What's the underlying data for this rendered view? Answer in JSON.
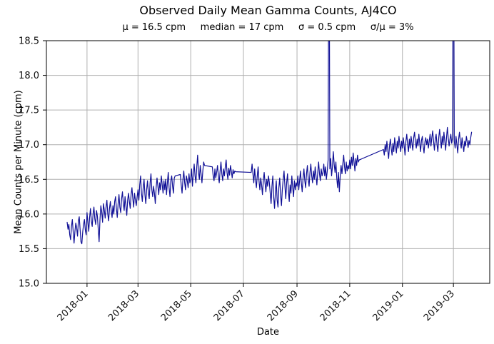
{
  "title": "Observed Daily Mean Gamma Counts, AJ4CO",
  "stats_line": "μ = 16.5 cpm     median = 17 cpm     σ = 0.5 cpm     σ/μ = 3%",
  "stats": {
    "mu": "16.5 cpm",
    "median": "17 cpm",
    "sigma": "0.5 cpm",
    "sigma_over_mu": "3%"
  },
  "chart_data": {
    "type": "line",
    "title": "Observed Daily Mean Gamma Counts, AJ4CO",
    "xlabel": "Date",
    "ylabel": "Mean Counts per Minute (cpm)",
    "grid": true,
    "legend": false,
    "line_color": "#0f0f96",
    "grid_color": "#b0b0b0",
    "axis_color": "#000000",
    "text_color": "#111111",
    "ylim": [
      15.0,
      18.5
    ],
    "yticks": [
      15.0,
      15.5,
      16.0,
      16.5,
      17.0,
      17.5,
      18.0,
      18.5
    ],
    "x_unit": "day",
    "x_day0_date": "2017-12-09",
    "xlim_days": [
      -24,
      489
    ],
    "xticks": [
      {
        "day": 23,
        "label": "2018-01"
      },
      {
        "day": 82,
        "label": "2018-03"
      },
      {
        "day": 143,
        "label": "2018-05"
      },
      {
        "day": 204,
        "label": "2018-07"
      },
      {
        "day": 266,
        "label": "2018-09"
      },
      {
        "day": 327,
        "label": "2018-11"
      },
      {
        "day": 388,
        "label": "2019-01"
      },
      {
        "day": 447,
        "label": "2019-03"
      }
    ],
    "offscale_spike_days": [
      303,
      447
    ],
    "segments": [
      {
        "start_day": 0,
        "values": [
          15.88,
          15.78,
          15.85,
          15.7,
          15.63,
          15.82,
          15.92,
          15.74,
          15.58,
          15.75,
          15.87,
          15.8,
          15.68,
          15.9,
          15.96,
          15.78,
          15.6,
          15.57,
          15.74,
          15.85,
          15.92,
          15.77,
          15.7,
          16.02,
          15.88,
          15.75,
          15.95,
          16.08,
          15.9,
          15.82,
          16.0,
          16.1,
          15.93,
          15.85,
          16.05,
          15.97,
          15.78,
          15.6,
          15.92,
          16.12,
          16.03,
          15.88,
          16.15,
          16.06,
          15.94,
          16.1,
          16.2,
          16.0,
          15.9,
          16.08,
          16.18,
          16.05,
          15.95,
          16.12,
          16.0,
          16.18,
          16.25,
          16.08,
          15.95,
          16.15,
          16.28,
          16.1,
          16.02,
          16.22,
          16.32,
          16.15,
          16.05,
          16.25,
          16.12,
          15.98,
          16.2,
          16.3,
          16.18,
          16.08,
          16.28,
          16.38,
          16.22,
          16.1,
          16.3,
          16.2,
          16.12,
          16.25,
          16.35,
          16.2,
          16.42,
          16.55,
          16.3,
          16.18,
          16.38,
          16.5,
          16.28,
          16.15,
          16.35,
          16.48,
          16.3,
          16.22,
          16.45,
          16.58,
          16.35,
          16.25,
          16.4,
          16.3,
          16.15,
          16.38,
          16.52,
          16.4,
          16.28,
          16.45,
          16.35,
          16.55,
          16.42,
          16.3,
          16.48,
          16.35,
          16.5,
          16.28,
          16.45,
          16.6,
          16.38,
          16.25,
          16.48,
          16.55,
          16.4,
          16.3,
          16.52,
          16.55
        ]
      },
      {
        "start_day": 131,
        "values": [
          16.57,
          16.42,
          16.3,
          16.5,
          16.62,
          16.45,
          16.35,
          16.55,
          16.48,
          16.38,
          16.58,
          16.45,
          16.5,
          16.65,
          16.4,
          16.58,
          16.72,
          16.55,
          16.45,
          16.68,
          16.85,
          16.6,
          16.5,
          16.7,
          16.58,
          16.45,
          16.62,
          16.75,
          16.7
        ]
      },
      {
        "start_day": 168,
        "values": [
          16.68,
          16.55,
          16.48,
          16.65,
          16.52,
          16.6,
          16.7,
          16.55,
          16.45,
          16.62,
          16.75,
          16.58,
          16.48,
          16.65,
          16.55,
          16.68,
          16.78,
          16.6,
          16.5,
          16.66,
          16.56,
          16.7,
          16.62,
          16.52,
          16.64,
          16.58,
          16.62,
          16.61
        ]
      },
      {
        "start_day": 213,
        "values": [
          16.6,
          16.72,
          16.58,
          16.45,
          16.65,
          16.5,
          16.38,
          16.55,
          16.68,
          16.48,
          16.35,
          16.52,
          16.42,
          16.28,
          16.48,
          16.6,
          16.45,
          16.32,
          16.5,
          16.4,
          16.55,
          16.45,
          16.3,
          16.15,
          16.4,
          16.55,
          16.25,
          16.08,
          16.32,
          16.48,
          16.2,
          16.1,
          16.38,
          16.52,
          16.28,
          16.12,
          16.35,
          16.5,
          16.62,
          16.4,
          16.22,
          16.45,
          16.58,
          16.35,
          16.18,
          16.42,
          16.3,
          16.55,
          16.38,
          16.25,
          16.48,
          16.35,
          16.45,
          16.4,
          16.55,
          16.35,
          16.48,
          16.62,
          16.45,
          16.32,
          16.52,
          16.65,
          16.48,
          16.38,
          16.58,
          16.7,
          16.5,
          16.4,
          16.6,
          16.72,
          16.55,
          16.45,
          16.62,
          16.5,
          16.68,
          16.55,
          16.42,
          16.6,
          16.75,
          16.58,
          16.48,
          16.65,
          16.55,
          16.6,
          16.72,
          16.55,
          16.68,
          16.5,
          16.62,
          16.78,
          21.0,
          16.65,
          16.8,
          16.55,
          16.68,
          16.9,
          16.72,
          16.6,
          16.75,
          16.52,
          16.38,
          16.6,
          16.32,
          16.55,
          16.7,
          16.58,
          16.72,
          16.85,
          16.68,
          16.58,
          16.75,
          16.62,
          16.7,
          16.65,
          16.78,
          16.65,
          16.82,
          16.7,
          16.88,
          16.75,
          16.62,
          16.8,
          16.7,
          16.85,
          16.75,
          16.78
        ]
      },
      {
        "start_day": 366,
        "values": [
          16.93,
          16.85,
          17.0,
          16.9,
          17.05,
          16.92,
          16.8,
          16.98,
          17.08,
          16.95,
          16.85,
          17.02,
          16.9,
          17.1,
          16.98,
          16.88,
          17.05,
          16.95,
          17.12,
          17.0,
          16.9,
          17.05,
          16.95,
          17.1,
          16.98,
          16.85,
          17.05,
          17.15,
          17.0,
          16.9,
          17.08,
          16.95,
          17.12,
          17.02,
          16.92,
          17.1,
          17.18,
          17.05,
          16.95,
          17.08,
          16.98,
          17.15,
          17.02,
          16.9,
          17.06,
          17.12,
          16.98,
          16.88,
          17.04,
          17.1,
          17.0,
          17.08,
          16.95,
          17.05,
          17.15,
          16.98,
          17.1,
          17.2,
          17.05,
          16.92,
          17.08,
          17.15,
          17.0,
          16.9,
          17.1,
          17.22,
          17.08,
          16.95,
          17.12,
          17.0,
          17.18,
          17.05,
          16.92,
          17.1,
          17.25,
          17.1,
          16.98,
          17.08,
          17.15,
          17.02,
          17.1,
          21.0,
          17.05,
          16.95,
          17.12,
          17.0,
          16.88,
          17.08,
          17.18,
          17.05,
          16.95,
          17.1,
          17.0,
          16.9,
          17.05,
          16.98,
          17.12,
          17.04,
          16.96,
          17.06,
          17.0,
          17.1,
          17.18
        ]
      }
    ]
  }
}
